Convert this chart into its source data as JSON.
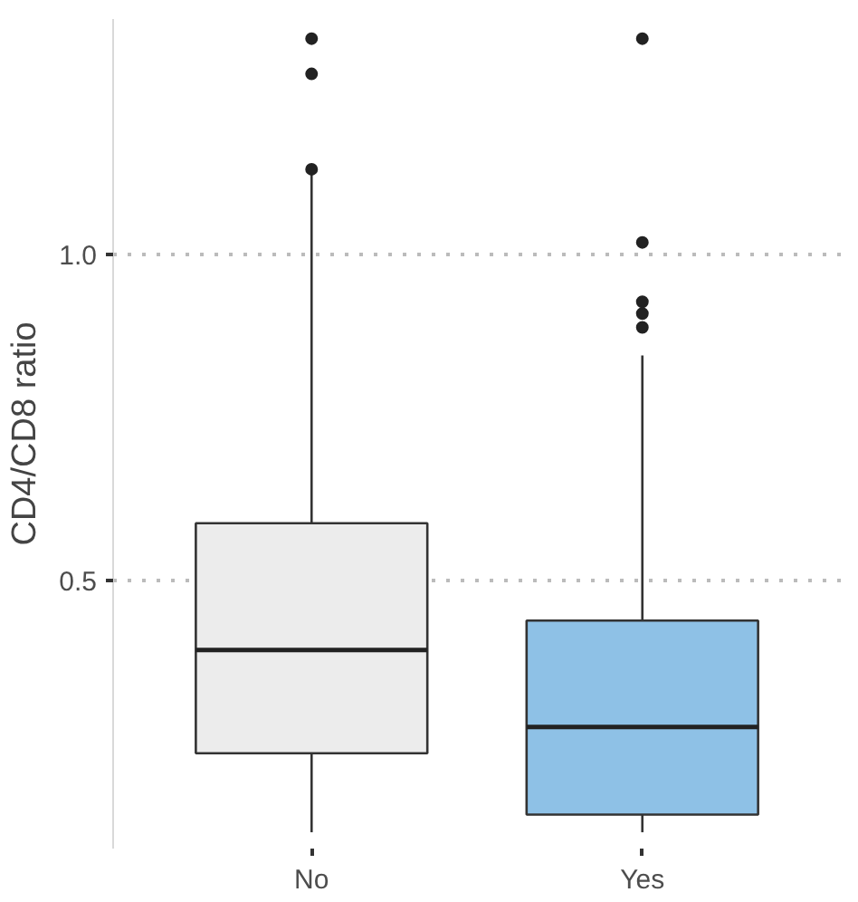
{
  "chart_data": {
    "type": "box",
    "ylabel": "CD4/CD8 ratio",
    "categories": [
      "No",
      "Yes"
    ],
    "colors": [
      "#ececec",
      "#8ec1e6"
    ],
    "boxes": [
      {
        "low": 0.115,
        "q1": 0.236,
        "median": 0.394,
        "q3": 0.588,
        "high": 1.13,
        "outliers": [
          1.13,
          1.276,
          1.33
        ]
      },
      {
        "low": 0.115,
        "q1": 0.142,
        "median": 0.276,
        "q3": 0.439,
        "high": 0.845,
        "outliers": [
          0.888,
          0.909,
          0.927,
          1.018,
          1.33
        ]
      }
    ],
    "ylim": [
      0.09,
      1.36
    ],
    "yticks": [
      {
        "value": 0.5,
        "label": "0.5"
      },
      {
        "value": 1.0,
        "label": "1.0"
      }
    ],
    "grid": "y"
  }
}
